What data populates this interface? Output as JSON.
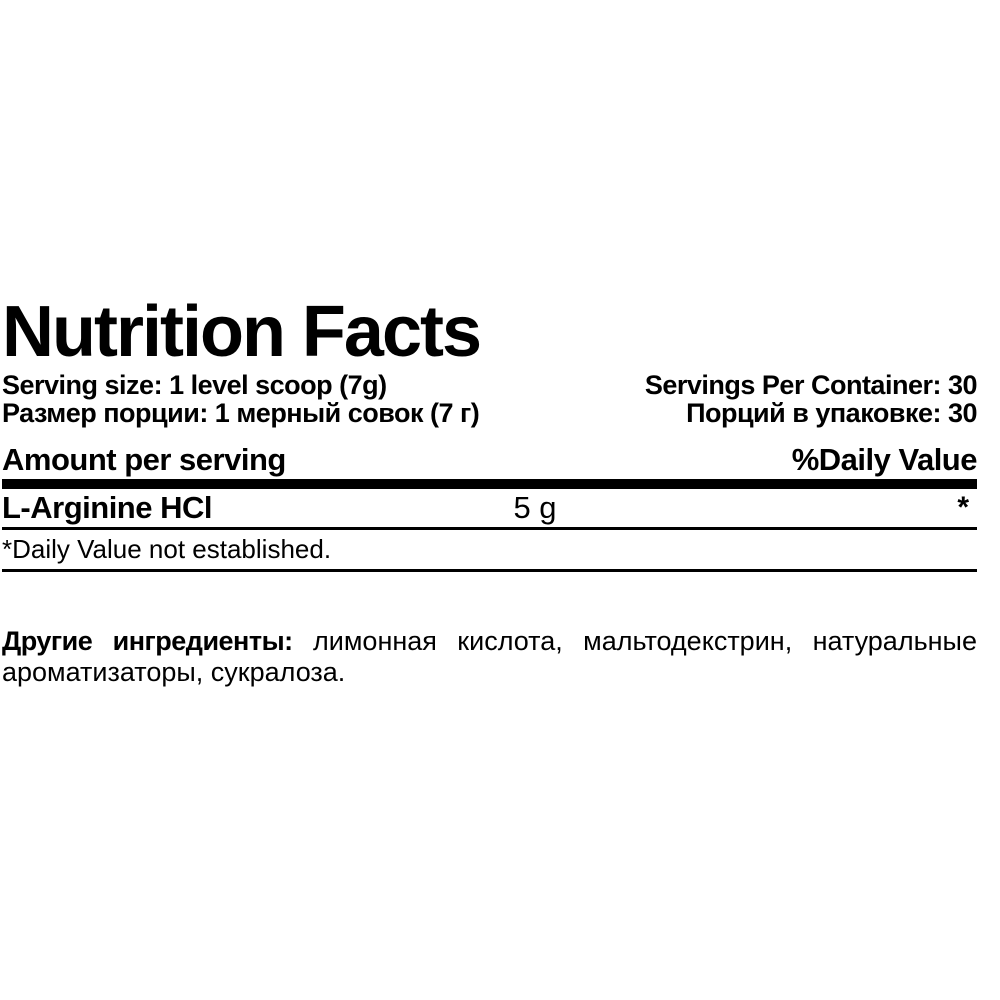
{
  "page": {
    "background_color": "#ffffff",
    "text_color": "#000000"
  },
  "label": {
    "title": "Nutrition Facts",
    "serving": {
      "size_en": "Serving size: 1 level scoop (7g)",
      "size_ru": "Размер порции: 1 мерный совок (7 г)",
      "per_container_en": "Servings Per Container: 30",
      "per_container_ru": "Порций в упаковке: 30"
    },
    "table": {
      "header_left": "Amount per serving",
      "header_right": "%Daily Value",
      "rows": [
        {
          "name": "L-Arginine HCl",
          "amount": "5 g",
          "daily_value": "*"
        }
      ],
      "footnote": "*Daily Value not established."
    },
    "other_ingredients": {
      "line1_words": [
        "Другие",
        "ингредиенты:",
        "лимонная",
        "кислота,",
        "мальтодекстрин,",
        "натуральные"
      ],
      "line2": "ароматизаторы, сукралоза."
    }
  }
}
